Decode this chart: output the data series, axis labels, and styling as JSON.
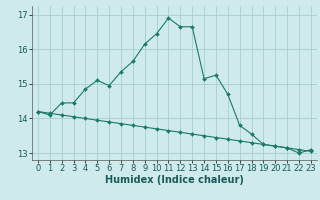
{
  "xlabel": "Humidex (Indice chaleur)",
  "background_color": "#ceeaea",
  "grid_color": "#a8cece",
  "line_color": "#1a7a6a",
  "xlim": [
    -0.5,
    23.5
  ],
  "ylim": [
    12.8,
    17.25
  ],
  "yticks": [
    13,
    14,
    15,
    16,
    17
  ],
  "xticks": [
    0,
    1,
    2,
    3,
    4,
    5,
    6,
    7,
    8,
    9,
    10,
    11,
    12,
    13,
    14,
    15,
    16,
    17,
    18,
    19,
    20,
    21,
    22,
    23
  ],
  "series1_x": [
    0,
    1,
    2,
    3,
    4,
    5,
    6,
    7,
    8,
    9,
    10,
    11,
    12,
    13,
    14,
    15,
    16,
    17,
    18,
    19,
    20,
    21,
    22,
    23
  ],
  "series1_y": [
    14.2,
    14.1,
    14.45,
    14.45,
    14.85,
    15.1,
    14.95,
    15.35,
    15.65,
    16.15,
    16.45,
    16.9,
    16.65,
    16.65,
    15.15,
    15.25,
    14.7,
    13.8,
    13.55,
    13.25,
    13.2,
    13.15,
    13.0,
    13.1
  ],
  "series2_x": [
    0,
    1,
    2,
    3,
    4,
    5,
    6,
    7,
    8,
    9,
    10,
    11,
    12,
    13,
    14,
    15,
    16,
    17,
    18,
    19,
    20,
    21,
    22,
    23
  ],
  "series2_y": [
    14.2,
    14.15,
    14.1,
    14.05,
    14.0,
    13.95,
    13.9,
    13.85,
    13.8,
    13.75,
    13.7,
    13.65,
    13.6,
    13.55,
    13.5,
    13.45,
    13.4,
    13.35,
    13.3,
    13.25,
    13.2,
    13.15,
    13.1,
    13.05
  ],
  "marker_size": 2.0,
  "line_width": 0.8,
  "tick_fontsize": 6.0,
  "xlabel_fontsize": 7.0
}
